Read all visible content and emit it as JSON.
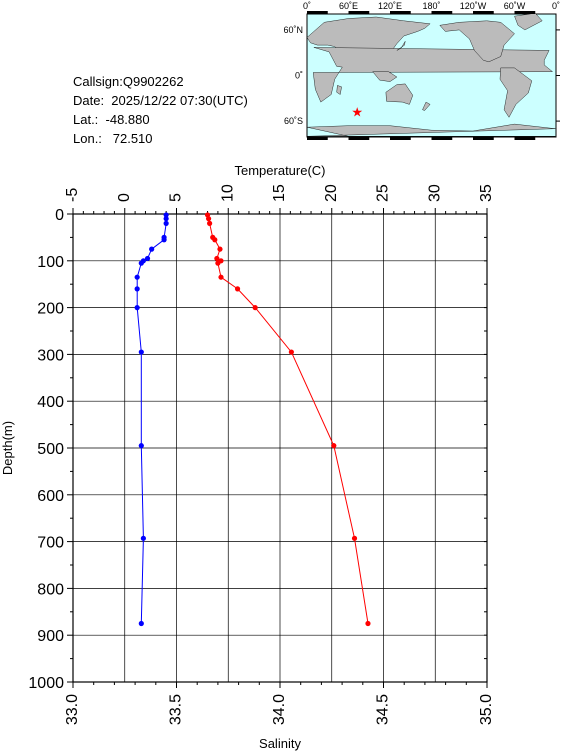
{
  "info": {
    "callsign": "Callsign:Q9902262",
    "date": "Date:  2025/12/22 07:30(UTC)",
    "lat": "Lat.:  -48.880",
    "lon": "Lon.:   72.510"
  },
  "map": {
    "lon_labels": [
      "0˚",
      "60˚E",
      "120˚E",
      "180˚",
      "120˚W",
      "60˚W",
      "0˚"
    ],
    "lat_labels": [
      "60˚N",
      "0˚",
      "60˚S"
    ],
    "ocean_color": "#ccffff",
    "land_color": "#bbbbbb",
    "station_marker": {
      "lon": 72.51,
      "lat": -48.88,
      "color": "#ff0000"
    }
  },
  "chart_data": {
    "type": "line",
    "title": "",
    "top_axis": {
      "label": "Temperature(C)",
      "range": [
        -5,
        35
      ],
      "ticks": [
        "-5",
        "0",
        "5",
        "10",
        "15",
        "20",
        "25",
        "30",
        "35"
      ]
    },
    "bottom_axis": {
      "label": "Salinity",
      "range": [
        33.0,
        35.0
      ],
      "ticks": [
        "33.0",
        "33.5",
        "34.0",
        "34.5",
        "35.0"
      ]
    },
    "y_axis": {
      "label": "Depth(m)",
      "range": [
        0,
        1000
      ],
      "inverted": true,
      "ticks": [
        "0",
        "100",
        "200",
        "300",
        "400",
        "500",
        "600",
        "700",
        "800",
        "900",
        "1000"
      ]
    },
    "grid": true,
    "series": [
      {
        "axis": "temperature",
        "color": "#ff0000",
        "points": [
          [
            8.0,
            2
          ],
          [
            8.1,
            10
          ],
          [
            8.2,
            20
          ],
          [
            8.5,
            50
          ],
          [
            8.7,
            55
          ],
          [
            9.2,
            75
          ],
          [
            8.9,
            95
          ],
          [
            9.3,
            100
          ],
          [
            9.0,
            105
          ],
          [
            9.3,
            135
          ],
          [
            10.9,
            160
          ],
          [
            12.6,
            200
          ],
          [
            16.1,
            295
          ],
          [
            20.2,
            495
          ],
          [
            22.2,
            693
          ],
          [
            23.5,
            875
          ]
        ]
      },
      {
        "axis": "salinity",
        "color": "#0000ff",
        "points": [
          [
            33.45,
            2
          ],
          [
            33.45,
            10
          ],
          [
            33.45,
            20
          ],
          [
            33.44,
            50
          ],
          [
            33.44,
            55
          ],
          [
            33.38,
            75
          ],
          [
            33.36,
            95
          ],
          [
            33.34,
            100
          ],
          [
            33.33,
            105
          ],
          [
            33.31,
            135
          ],
          [
            33.31,
            160
          ],
          [
            33.31,
            200
          ],
          [
            33.33,
            295
          ],
          [
            33.33,
            495
          ],
          [
            33.34,
            693
          ],
          [
            33.33,
            875
          ]
        ]
      }
    ]
  }
}
